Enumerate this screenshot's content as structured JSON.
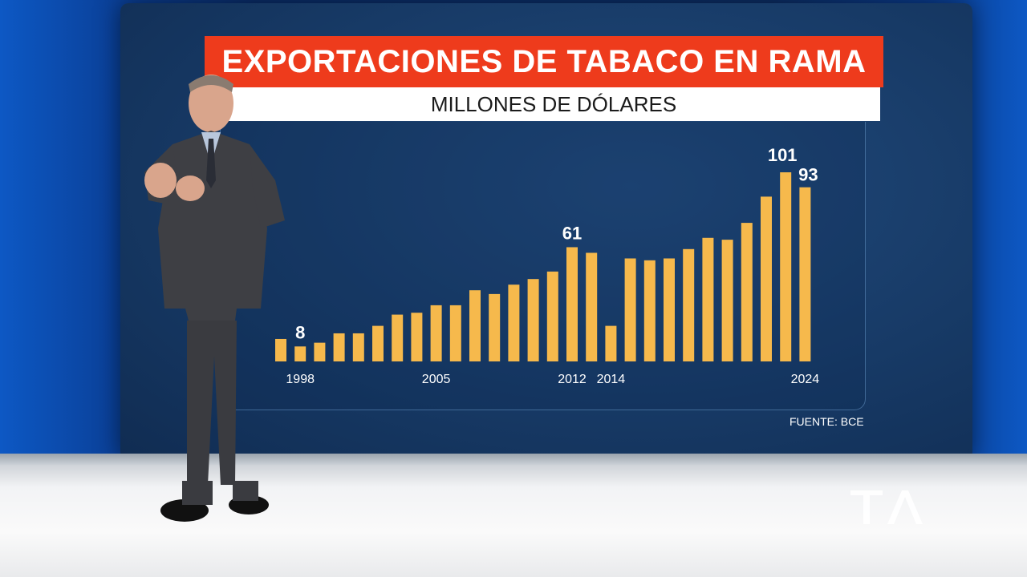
{
  "broadcast": {
    "title": "EXPORTACIONES DE TABACO EN RAMA",
    "subtitle": "MILLONES DE DÓLARES",
    "source": "FUENTE: BCE"
  },
  "colors": {
    "bar": "#f6b94c",
    "title_bg": "#ee3b1c",
    "label": "#ffffff"
  },
  "chart_data": {
    "type": "bar",
    "title": "EXPORTACIONES DE TABACO EN RAMA",
    "subtitle": "MILLONES DE DÓLARES",
    "categories": [
      "1997",
      "1998",
      "1999",
      "2000",
      "2001",
      "2002",
      "2003",
      "2004",
      "2005",
      "2006",
      "2007",
      "2008",
      "2009",
      "2010",
      "2011",
      "2012",
      "2013",
      "2014",
      "2015",
      "2016",
      "2017",
      "2018",
      "2019",
      "2020",
      "2021",
      "2022",
      "2023",
      "2024"
    ],
    "tick_labels": [
      "",
      "1998",
      "",
      "",
      "",
      "",
      "",
      "",
      "2005",
      "",
      "",
      "",
      "",
      "",
      "",
      "2012",
      "",
      "2014",
      "",
      "",
      "",
      "",
      "",
      "",
      "",
      "",
      "",
      "2024"
    ],
    "values": [
      12,
      8,
      10,
      15,
      15,
      19,
      25,
      26,
      30,
      30,
      38,
      36,
      41,
      44,
      48,
      61,
      58,
      19,
      55,
      54,
      55,
      60,
      66,
      65,
      74,
      88,
      101,
      93
    ],
    "data_labels": [
      "",
      "8",
      "",
      "",
      "",
      "",
      "",
      "",
      "",
      "",
      "",
      "",
      "",
      "",
      "",
      "61",
      "",
      "",
      "",
      "",
      "",
      "",
      "",
      "",
      "",
      "",
      "101",
      "93"
    ],
    "ylim": [
      0,
      105
    ],
    "grid": false,
    "legend": "none"
  }
}
